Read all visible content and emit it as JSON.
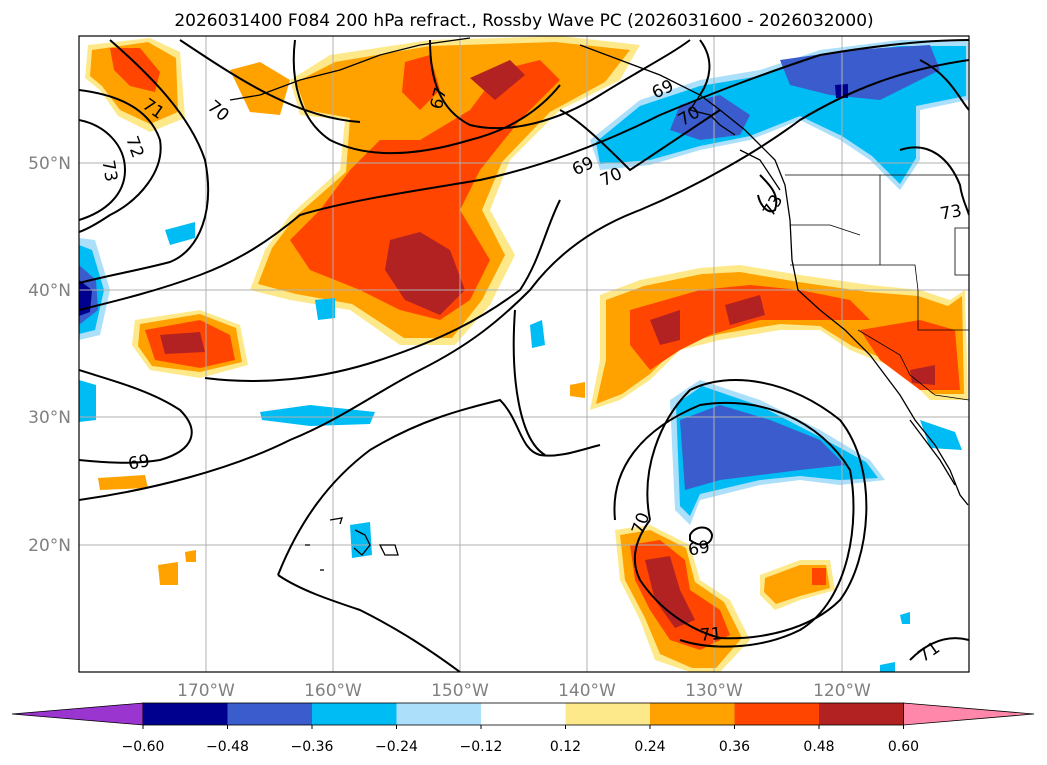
{
  "title": "2026031400 F084 200 hPa refract., Rossby Wave PC (2026031600 - 2026032000)",
  "map": {
    "lat_labels": [
      "50°N",
      "40°N",
      "30°N",
      "20°N"
    ],
    "lon_labels": [
      "170°W",
      "160°W",
      "150°W",
      "140°W",
      "130°W",
      "120°W"
    ],
    "contour_labels": [
      "71",
      "70",
      "72",
      "73",
      "69",
      "70",
      "69",
      "70",
      "73",
      "73",
      "69",
      "70",
      "69",
      "71",
      "71",
      "67"
    ]
  },
  "colorbar": {
    "ticks": [
      "−0.60",
      "−0.48",
      "−0.36",
      "−0.24",
      "−0.12",
      "0.12",
      "0.24",
      "0.36",
      "0.48",
      "0.60"
    ],
    "colors": [
      "#9a35d0",
      "#00008f",
      "#3a5ccc",
      "#00bcf5",
      "#acdffa",
      "#ffffff",
      "#fde98a",
      "#ffa200",
      "#ff4500",
      "#b22222",
      "#ff88aa"
    ]
  },
  "colors": {
    "neg_strong": "#00008f",
    "neg_mid": "#3a5ccc",
    "neg_light": "#00bcf5",
    "neg_faint": "#acdffa",
    "pos_faint": "#fde98a",
    "pos_light": "#ffa200",
    "pos_mid": "#ff4500",
    "pos_strong": "#b22222"
  }
}
